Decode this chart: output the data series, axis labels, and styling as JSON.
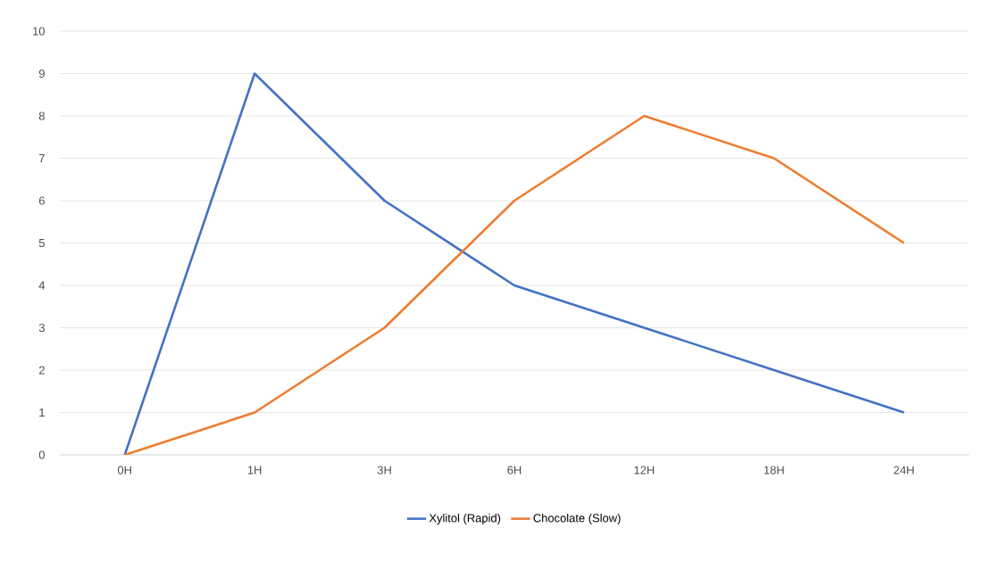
{
  "chart_data": {
    "type": "line",
    "categories": [
      "0H",
      "1H",
      "3H",
      "6H",
      "12H",
      "18H",
      "24H"
    ],
    "series": [
      {
        "name": "Xylitol (Rapid)",
        "color": "#4472c4",
        "values": [
          0,
          9,
          6,
          4,
          3,
          2,
          1
        ]
      },
      {
        "name": "Chocolate (Slow)",
        "color": "#ed7d31",
        "values": [
          0,
          1,
          3,
          6,
          8,
          7,
          5
        ]
      }
    ],
    "ylim": [
      0,
      10
    ],
    "yticks": [
      0,
      1,
      2,
      3,
      4,
      5,
      6,
      7,
      8,
      9,
      10
    ],
    "grid": "y",
    "legend": "bottom",
    "marker": "none",
    "line_style": "solid"
  }
}
